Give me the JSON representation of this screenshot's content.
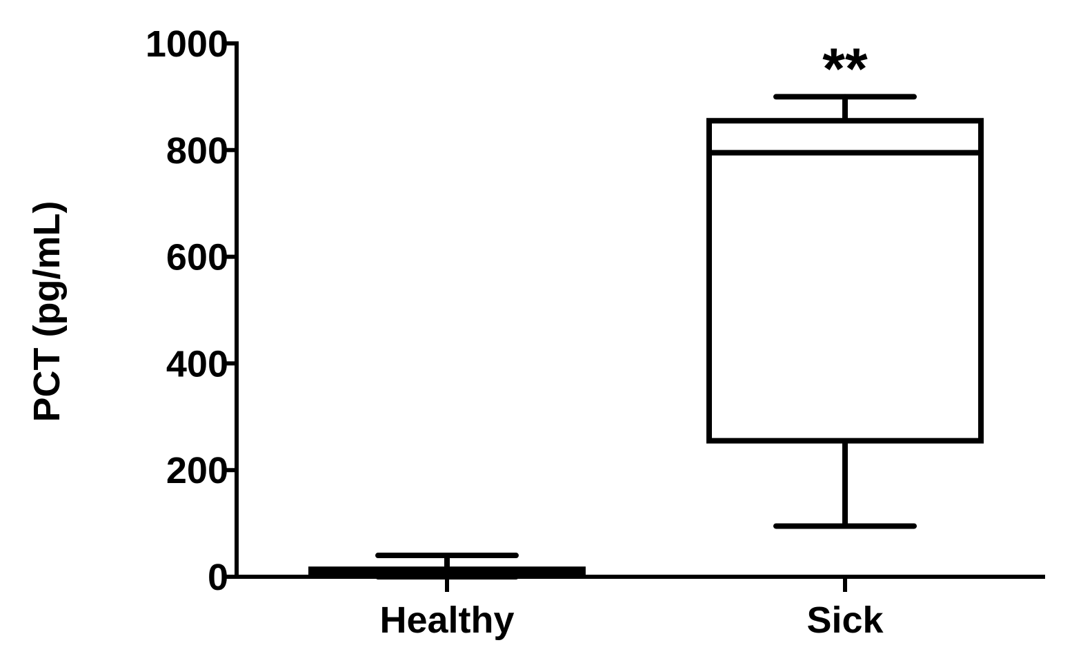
{
  "chart_data": {
    "type": "box",
    "ylabel": "PCT (pg/mL)",
    "ylim": [
      0,
      1000
    ],
    "yticks": [
      "0",
      "200",
      "400",
      "600",
      "800",
      "1000"
    ],
    "categories": [
      "Healthy",
      "Sick"
    ],
    "boxes": [
      {
        "category": "Healthy",
        "min": 0,
        "q1": 3,
        "median": 8,
        "q3": 14,
        "max": 40,
        "annotation": ""
      },
      {
        "category": "Sick",
        "min": 95,
        "q1": 255,
        "median": 795,
        "q3": 855,
        "max": 900,
        "annotation": "**"
      }
    ],
    "grid": false,
    "legend": "none"
  }
}
